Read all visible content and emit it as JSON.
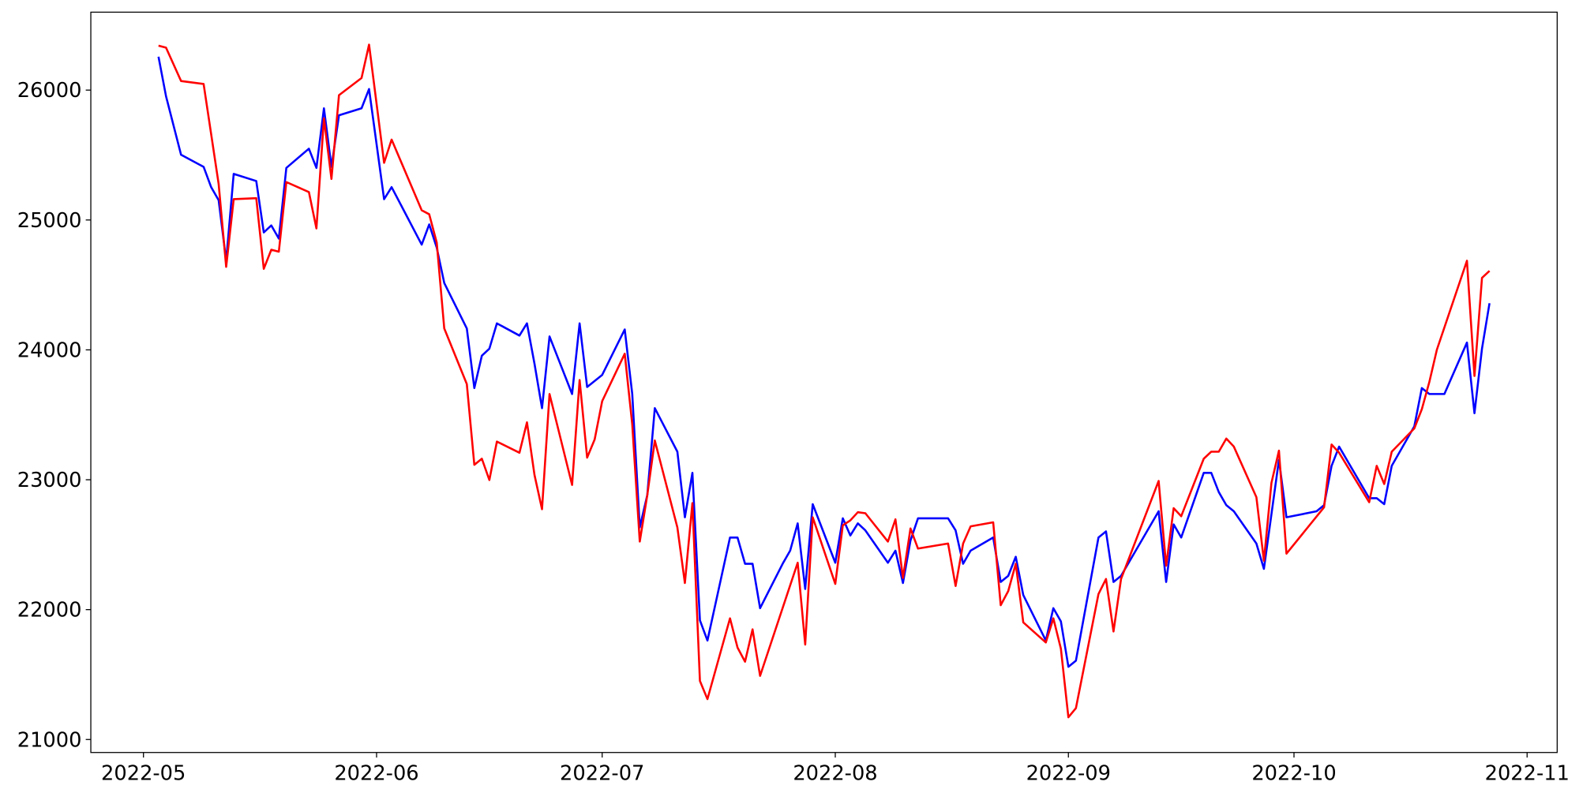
{
  "chart_data": {
    "type": "line",
    "xlim": [
      19106,
      19301
    ],
    "ylim": [
      20900,
      26600
    ],
    "xticks": [
      {
        "value": 19113,
        "label": "2022-05"
      },
      {
        "value": 19144,
        "label": "2022-06"
      },
      {
        "value": 19174,
        "label": "2022-07"
      },
      {
        "value": 19205,
        "label": "2022-08"
      },
      {
        "value": 19236,
        "label": "2022-09"
      },
      {
        "value": 19266,
        "label": "2022-10"
      },
      {
        "value": 19297,
        "label": "2022-11"
      }
    ],
    "yticks": [
      21000,
      22000,
      23000,
      24000,
      25000,
      26000
    ],
    "grid": false,
    "series": [
      {
        "color": "#0000ff",
        "x": [
          19115,
          19116,
          19118,
          19121,
          19122,
          19123,
          19124,
          19125,
          19128,
          19129,
          19130,
          19131,
          19132,
          19135,
          19136,
          19137,
          19138,
          19139,
          19142,
          19143,
          19145,
          19146,
          19150,
          19151,
          19152,
          19153,
          19156,
          19157,
          19158,
          19159,
          19160,
          19163,
          19164,
          19165,
          19166,
          19167,
          19170,
          19171,
          19172,
          19174,
          19177,
          19178,
          19179,
          19180,
          19181,
          19184,
          19185,
          19186,
          19187,
          19188,
          19191,
          19192,
          19193,
          19194,
          19195,
          19198,
          19199,
          19200,
          19201,
          19202,
          19205,
          19206,
          19207,
          19208,
          19209,
          19212,
          19213,
          19214,
          19215,
          19216,
          19220,
          19221,
          19222,
          19223,
          19226,
          19227,
          19228,
          19229,
          19230,
          19233,
          19234,
          19235,
          19236,
          19237,
          19240,
          19241,
          19242,
          19243,
          19248,
          19249,
          19250,
          19251,
          19254,
          19255,
          19256,
          19257,
          19258,
          19261,
          19262,
          19264,
          19265,
          19269,
          19270,
          19271,
          19272,
          19276,
          19277,
          19278,
          19279,
          19282,
          19283,
          19284,
          19286,
          19289,
          19290,
          19291,
          19292
        ],
        "values": [
          26257,
          25953,
          25502,
          25409,
          25253,
          25152,
          24686,
          25355,
          25300,
          24904,
          24958,
          24857,
          25401,
          25549,
          25401,
          25860,
          25409,
          25806,
          25860,
          26008,
          25160,
          25253,
          24810,
          24966,
          24787,
          24515,
          24165,
          23706,
          23955,
          24009,
          24204,
          24110,
          24204,
          23893,
          23551,
          24103,
          23660,
          24204,
          23714,
          23807,
          24157,
          23660,
          22633,
          22882,
          23551,
          23216,
          22711,
          23053,
          21918,
          21762,
          22555,
          22555,
          22353,
          22353,
          22011,
          22353,
          22454,
          22664,
          22159,
          22812,
          22361,
          22703,
          22571,
          22664,
          22610,
          22361,
          22454,
          22205,
          22532,
          22703,
          22703,
          22610,
          22353,
          22454,
          22555,
          22213,
          22260,
          22407,
          22112,
          21762,
          22011,
          21910,
          21560,
          21607,
          22555,
          22602,
          22213,
          22260,
          22757,
          22213,
          22656,
          22555,
          23053,
          23053,
          22905,
          22804,
          22757,
          22509,
          22314,
          23154,
          22711,
          22757,
          22804,
          23107,
          23255,
          22858,
          22858,
          22812,
          23107,
          23411,
          23706,
          23660,
          23660,
          24056,
          23512,
          24009,
          24359
        ]
      },
      {
        "color": "#ff0000",
        "x": [
          19115,
          19116,
          19118,
          19121,
          19123,
          19124,
          19125,
          19128,
          19129,
          19130,
          19131,
          19132,
          19135,
          19136,
          19137,
          19138,
          19139,
          19142,
          19143,
          19145,
          19146,
          19150,
          19151,
          19152,
          19153,
          19156,
          19157,
          19158,
          19159,
          19160,
          19163,
          19164,
          19165,
          19166,
          19167,
          19170,
          19171,
          19172,
          19173,
          19174,
          19177,
          19178,
          19179,
          19180,
          19181,
          19184,
          19185,
          19186,
          19187,
          19188,
          19191,
          19192,
          19193,
          19194,
          19195,
          19200,
          19201,
          19202,
          19205,
          19206,
          19207,
          19208,
          19209,
          19212,
          19213,
          19214,
          19215,
          19216,
          19220,
          19221,
          19222,
          19223,
          19226,
          19227,
          19228,
          19229,
          19230,
          19233,
          19234,
          19235,
          19236,
          19237,
          19240,
          19241,
          19242,
          19243,
          19248,
          19249,
          19250,
          19251,
          19254,
          19255,
          19256,
          19257,
          19258,
          19261,
          19262,
          19263,
          19264,
          19265,
          19270,
          19271,
          19272,
          19276,
          19277,
          19278,
          19279,
          19282,
          19283,
          19284,
          19285,
          19289,
          19290,
          19291,
          19292
        ],
        "values": [
          26342,
          26327,
          26070,
          26047,
          25277,
          24639,
          25160,
          25168,
          24624,
          24771,
          24756,
          25292,
          25215,
          24935,
          25782,
          25316,
          25961,
          26093,
          26350,
          25440,
          25619,
          25075,
          25044,
          24826,
          24165,
          23737,
          23115,
          23162,
          22998,
          23294,
          23208,
          23442,
          23037,
          22773,
          23660,
          22960,
          23768,
          23170,
          23310,
          23605,
          23970,
          23426,
          22524,
          22882,
          23302,
          22633,
          22205,
          22820,
          21451,
          21311,
          21933,
          21708,
          21599,
          21848,
          21490,
          22361,
          21731,
          22711,
          22198,
          22649,
          22687,
          22750,
          22742,
          22524,
          22695,
          22244,
          22625,
          22470,
          22509,
          22182,
          22509,
          22641,
          22672,
          22034,
          22143,
          22353,
          21902,
          21747,
          21933,
          21700,
          21171,
          21241,
          22120,
          22236,
          21832,
          22236,
          22991,
          22338,
          22781,
          22719,
          23162,
          23216,
          23216,
          23317,
          23255,
          22866,
          22376,
          22975,
          23224,
          22431,
          22788,
          23271,
          23208,
          22827,
          23107,
          22967,
          23216,
          23395,
          23543,
          23753,
          24001,
          24686,
          23799,
          24554,
          24608
        ]
      }
    ]
  }
}
